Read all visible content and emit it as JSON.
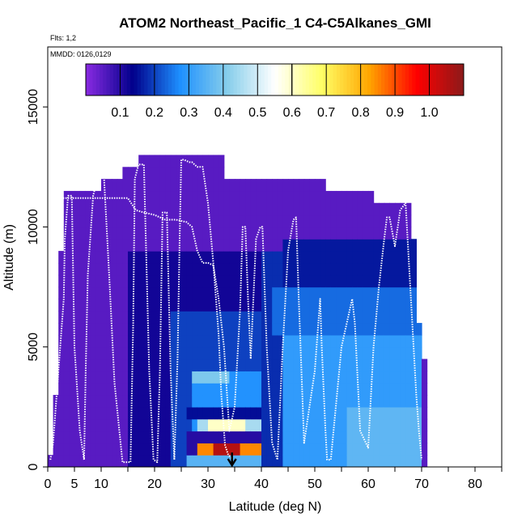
{
  "chart_data": {
    "type": "heatmap",
    "title": "ATOM2 Northeast_Pacific_1 C4-C5Alkanes_GMI",
    "flights_label": "Flts: 1,2",
    "dates_label": "MMDD: 0126,0129",
    "xlabel": "Latitude (deg N)",
    "ylabel": "Altitude (m)",
    "xlim": [
      0,
      85
    ],
    "ylim": [
      0,
      17500
    ],
    "x_ticks": [
      0,
      5,
      10,
      20,
      30,
      40,
      50,
      60,
      70,
      80
    ],
    "x_minor_ticks": [
      15,
      25,
      35,
      45,
      55,
      65,
      75,
      85
    ],
    "y_ticks": [
      0,
      5000,
      10000,
      15000
    ],
    "colorbar": {
      "min": 0.0,
      "max": 1.1,
      "tick_values": [
        0.1,
        0.2,
        0.3,
        0.4,
        0.5,
        0.6,
        0.7,
        0.8,
        0.9,
        1.0
      ],
      "tick_labels": [
        "0.1",
        "0.2",
        "0.3",
        "0.4",
        "0.5",
        "0.6",
        "0.7",
        "0.8",
        "0.9",
        "1.0"
      ],
      "colors": [
        "#8a2be2",
        "#00008b",
        "#1e90ff",
        "#87ceeb",
        "#ffffff",
        "#ffff66",
        "#ffa500",
        "#ff0000",
        "#8b1a1a"
      ]
    },
    "latitude_marker": 34.5,
    "curtain": {
      "lats": [
        0.5,
        1.5,
        2.5,
        3.5,
        4.5,
        5.5,
        6.5,
        7.5,
        8.5,
        9.5,
        10.5,
        11.5,
        12.5,
        13.5,
        14.5,
        15.5,
        16.5,
        17.5,
        18.5,
        19.5,
        20.5,
        21.5,
        22.5,
        23.5,
        24.5,
        25.5,
        26.5,
        27.5,
        28.5,
        29.5,
        30.5,
        31.5,
        32.5,
        33.5,
        34.5,
        35.5,
        36.5,
        37.5,
        38.5,
        39.5,
        40.5,
        41.5,
        42.5,
        43.5,
        44.5,
        45.5,
        46.5,
        47.5,
        48.5,
        49.5,
        50.5,
        51.5,
        52.5,
        53.5,
        54.5,
        55.5,
        56.5,
        57.5,
        58.5,
        59.5,
        60.5,
        61.5,
        62.5,
        63.5,
        64.5,
        65.5,
        66.5,
        67.5,
        68.5,
        69.5,
        70.5
      ],
      "tops_m": [
        500,
        3000,
        9000,
        11500,
        11500,
        11500,
        11500,
        11500,
        11500,
        11500,
        12000,
        12000,
        12000,
        12000,
        12500,
        12500,
        12500,
        13000,
        13000,
        13000,
        13000,
        13000,
        13000,
        13000,
        13000,
        13000,
        13000,
        13000,
        13000,
        13000,
        13000,
        13000,
        13000,
        12000,
        12000,
        12000,
        12000,
        12000,
        12000,
        12000,
        12000,
        12000,
        12000,
        12000,
        12000,
        12000,
        12000,
        12000,
        12000,
        12000,
        12000,
        12000,
        11500,
        11500,
        11500,
        11500,
        11500,
        11500,
        11500,
        11500,
        11500,
        11000,
        11000,
        11000,
        11000,
        11000,
        11000,
        11000,
        9500,
        6000,
        4500
      ],
      "bottom_m": 0,
      "level_height_m": 500,
      "background_value": 0.05,
      "blocks": [
        {
          "lat0": 15,
          "lat1": 40,
          "alt0": 0,
          "alt1": 9000,
          "value": 0.12
        },
        {
          "lat0": 23,
          "lat1": 40,
          "alt0": 0,
          "alt1": 6500,
          "value": 0.2
        },
        {
          "lat0": 27,
          "lat1": 40,
          "alt0": 0,
          "alt1": 4000,
          "value": 0.28
        },
        {
          "lat0": 27,
          "lat1": 34,
          "alt0": 3500,
          "alt1": 4000,
          "value": 0.4
        },
        {
          "lat0": 26,
          "lat1": 40,
          "alt0": 2000,
          "alt1": 2500,
          "value": 0.15
        },
        {
          "lat0": 28,
          "lat1": 40,
          "alt0": 1500,
          "alt1": 2000,
          "value": 0.45
        },
        {
          "lat0": 30,
          "lat1": 37,
          "alt0": 1500,
          "alt1": 2000,
          "value": 0.6
        },
        {
          "lat0": 26,
          "lat1": 40,
          "alt0": 500,
          "alt1": 1500,
          "value": 0.1
        },
        {
          "lat0": 26,
          "lat1": 40,
          "alt0": 0,
          "alt1": 500,
          "value": 0.35
        },
        {
          "lat0": 28,
          "lat1": 40,
          "alt0": 500,
          "alt1": 1000,
          "value": 0.85
        },
        {
          "lat0": 31,
          "lat1": 36,
          "alt0": 500,
          "alt1": 1000,
          "value": 1.05
        },
        {
          "lat0": 40,
          "lat1": 48,
          "alt0": 0,
          "alt1": 9000,
          "value": 0.18
        },
        {
          "lat0": 44,
          "lat1": 70,
          "alt0": 0,
          "alt1": 5500,
          "value": 0.3
        },
        {
          "lat0": 42,
          "lat1": 70,
          "alt0": 5500,
          "alt1": 7500,
          "value": 0.24
        },
        {
          "lat0": 44,
          "lat1": 70,
          "alt0": 7500,
          "alt1": 9500,
          "value": 0.16
        },
        {
          "lat0": 56,
          "lat1": 70,
          "alt0": 0,
          "alt1": 2500,
          "value": 0.36
        }
      ]
    },
    "flight_tracks": [
      {
        "lat": [
          0.5,
          1,
          2,
          3,
          3.2,
          3.8,
          4.5,
          5,
          6,
          6.8,
          7.1,
          7.5,
          8.5,
          9.5,
          10.5,
          11.5,
          12.5,
          14,
          15.5,
          16,
          16.3,
          17,
          18,
          19,
          19.8,
          20.5,
          21,
          21.5,
          22.3,
          23,
          23.7,
          24.3,
          24.7,
          25,
          25.5,
          26.5,
          27,
          28,
          29,
          30,
          31,
          32,
          32.5,
          33.2,
          33.8,
          34.3,
          34.5
        ],
        "alt": [
          300,
          1000,
          4000,
          7000,
          9500,
          11300,
          11300,
          5000,
          1500,
          300,
          4000,
          8000,
          11300,
          12200,
          12200,
          8000,
          3500,
          200,
          200,
          6000,
          12000,
          12600,
          12600,
          4000,
          300,
          200,
          4000,
          10600,
          10600,
          4000,
          300,
          4500,
          9500,
          12800,
          12800,
          12700,
          12700,
          12500,
          12500,
          11000,
          8500,
          5500,
          3000,
          900,
          500,
          400,
          300
        ]
      },
      {
        "lat": [
          1.5,
          3,
          5,
          8,
          12,
          15,
          16.5,
          18,
          20,
          22,
          24,
          26,
          27,
          28,
          29,
          30,
          31,
          32,
          33,
          34,
          35,
          36,
          36.5,
          37,
          37.5,
          38,
          39,
          39.8,
          40.2,
          41,
          42,
          43,
          44,
          45,
          46,
          46.5,
          47,
          48,
          50,
          51,
          51.3,
          52,
          52.3,
          53,
          55,
          56.5,
          57,
          57.5,
          58.5,
          60,
          61,
          62,
          63,
          63.5,
          64,
          65,
          66,
          67,
          68,
          69,
          69.5,
          70
        ],
        "alt": [
          11200,
          11200,
          11200,
          11200,
          11200,
          11200,
          10700,
          10600,
          10500,
          10300,
          10300,
          10200,
          10000,
          9000,
          8500,
          8500,
          8400,
          7000,
          5000,
          1500,
          2500,
          6500,
          10000,
          10000,
          7000,
          4500,
          9500,
          10000,
          10000,
          5000,
          1000,
          300,
          5000,
          9000,
          10300,
          10400,
          7000,
          1000,
          4000,
          7000,
          5000,
          1500,
          300,
          300,
          5000,
          6500,
          7000,
          6000,
          1500,
          800,
          5000,
          7500,
          9500,
          10400,
          10400,
          9200,
          10700,
          11000,
          7000,
          3000,
          1500,
          300
        ]
      }
    ]
  }
}
